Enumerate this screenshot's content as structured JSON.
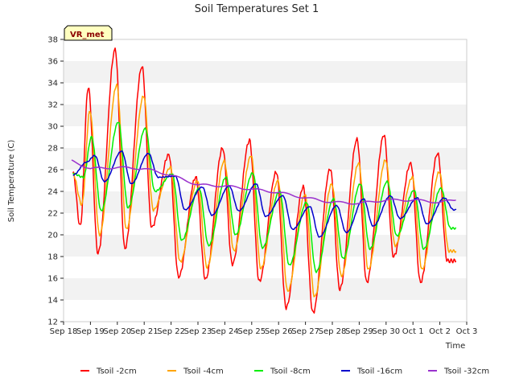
{
  "chart_data": {
    "type": "line",
    "title": "Soil Temperatures Set 1",
    "xlabel": "Time",
    "ylabel": "Soil Temperature (C)",
    "badge": "VR_met",
    "ylim": [
      12,
      38
    ],
    "yticks": [
      12,
      14,
      16,
      18,
      20,
      22,
      24,
      26,
      28,
      30,
      32,
      34,
      36,
      38
    ],
    "xlim": [
      0,
      15
    ],
    "xticks": [
      "Sep 18",
      "Sep 19",
      "Sep 20",
      "Sep 21",
      "Sep 22",
      "Sep 23",
      "Sep 24",
      "Sep 25",
      "Sep 26",
      "Sep 27",
      "Sep 28",
      "Sep 29",
      "Sep 30",
      "Oct 1",
      "Oct 2",
      "Oct 3"
    ],
    "grid": "horizontal bands",
    "legend_position": "bottom",
    "days": [
      0.35,
      1,
      2,
      3,
      4,
      5,
      6,
      7,
      8,
      9,
      10,
      11,
      12,
      13,
      14,
      14.6
    ],
    "series": [
      {
        "name": "Tsoil -2cm",
        "color": "#ff0000",
        "mins": [
          20.8,
          18.3,
          18.7,
          20.7,
          16.1,
          15.9,
          17.3,
          15.7,
          13.3,
          12.8,
          15.0,
          15.6,
          18.0,
          15.6,
          17.6
        ],
        "maxs": [
          33.6,
          37.1,
          35.5,
          27.4,
          25.3,
          28.0,
          28.7,
          25.8,
          24.4,
          26.1,
          28.8,
          29.2,
          26.6,
          27.5
        ]
      },
      {
        "name": "Tsoil -4cm",
        "color": "#ffa500",
        "mins": [
          22.8,
          20.0,
          20.5,
          22.3,
          17.5,
          17.0,
          18.5,
          16.9,
          14.8,
          14.3,
          16.2,
          16.8,
          19.0,
          16.8,
          18.5
        ],
        "maxs": [
          31.4,
          33.8,
          32.8,
          26.2,
          25.0,
          26.8,
          27.3,
          25.0,
          23.7,
          24.7,
          26.6,
          26.9,
          25.3,
          25.8
        ]
      },
      {
        "name": "Tsoil -8cm",
        "color": "#00ee00",
        "mins": [
          25.3,
          22.2,
          22.5,
          24.0,
          19.5,
          19.0,
          20.0,
          18.8,
          17.2,
          16.6,
          17.8,
          18.7,
          19.9,
          18.7,
          20.6
        ],
        "maxs": [
          29.0,
          30.4,
          29.8,
          25.6,
          24.3,
          25.3,
          25.7,
          24.0,
          23.0,
          23.3,
          24.7,
          24.9,
          24.1,
          24.3
        ]
      },
      {
        "name": "Tsoil -16cm",
        "color": "#0000cc",
        "mins": [
          26.7,
          24.9,
          24.7,
          25.3,
          22.3,
          21.8,
          22.2,
          21.7,
          20.5,
          19.8,
          20.2,
          20.8,
          21.5,
          21.0,
          22.3
        ],
        "maxs": [
          27.3,
          27.7,
          27.5,
          25.4,
          24.4,
          24.5,
          24.7,
          23.6,
          22.6,
          22.7,
          23.3,
          23.6,
          23.4,
          23.4
        ]
      },
      {
        "name": "Tsoil -32cm",
        "color": "#9a32cd",
        "x": [
          0.3,
          1,
          2,
          3,
          4,
          5,
          6,
          7,
          8,
          9,
          10,
          11,
          12,
          13,
          14,
          14.6
        ],
        "y": [
          26.8,
          26.1,
          26.2,
          26.1,
          25.5,
          24.6,
          24.5,
          24.2,
          23.9,
          23.4,
          23.0,
          22.9,
          23.2,
          23.2,
          23.0,
          23.2
        ]
      }
    ]
  }
}
